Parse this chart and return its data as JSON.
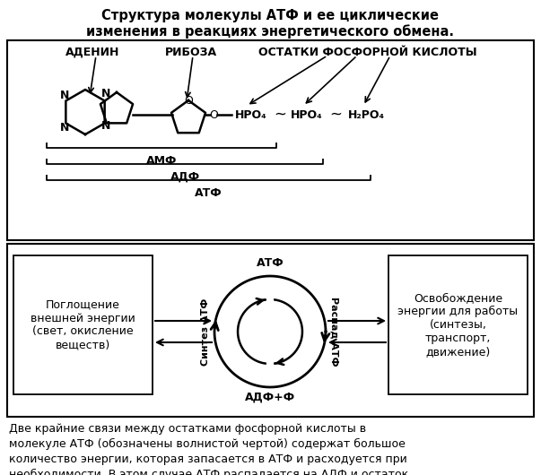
{
  "title": "Структура молекулы АТФ и ее циклические\nизменения в реакциях энергетического обмена.",
  "title_fontsize": 10.5,
  "body_text": "Две крайние связи между остатками фосфорной кислоты в\nмолекуле АТФ (обозначены волнистой чертой) содержат большое\nколичество энергии, которая запасается в АТФ и расходуется при\nнеобходимости. В этом случае АТФ распадается на АДФ и остаток\nфосфорной кислоты (фосфат). Восстановление АТФ требует\nпоглощения внешней энергии.",
  "body_fontsize": 9,
  "bg_color": "#ffffff",
  "text_color": "#000000",
  "label_adenin": "АДЕНИН",
  "label_riboza": "РИБОЗА",
  "label_ostatki": "ОСТАТКИ ФОСФОРНОЙ КИСЛОТЫ",
  "label_amf": "АМФ",
  "label_adf": "АДФ",
  "label_atf_bracket": "АТФ",
  "label_atf_top": "АТФ",
  "label_adf_phi": "АДФ+Ф",
  "label_sintez": "Синтез АТФ",
  "label_raspad": "Распад АТФ",
  "label_left_box": "Поглощение\nвнешней энергии\n(свет, окисление\nвеществ)",
  "label_right_box": "Освобождение\nэнергии для работы\n(синтезы,\nтранспорт,\nдвижение)"
}
